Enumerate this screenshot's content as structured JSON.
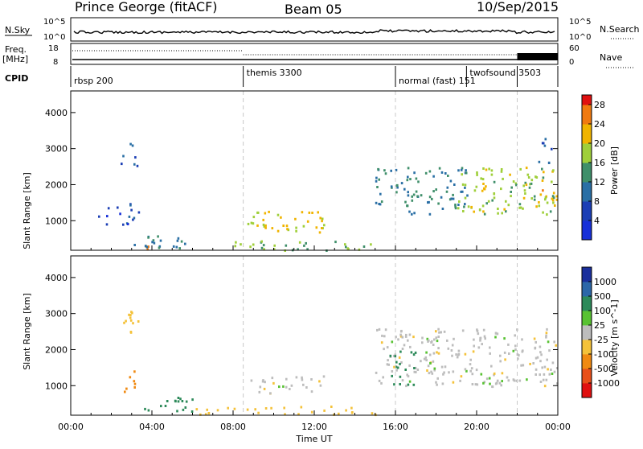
{
  "header": {
    "station": "Prince George (fitACF)",
    "beam": "Beam 05",
    "date": "10/Sep/2015"
  },
  "top_panels": {
    "nsky_label": "N.Sky",
    "nsky_ticks": [
      "10^5",
      "10^0"
    ],
    "nsearch_label": "N.Search",
    "nsearch_ticks": [
      "10^5",
      "10^0"
    ],
    "freq_label": "Freq.",
    "freq_unit": "[MHz]",
    "freq_ticks": [
      "18",
      "8"
    ],
    "nave_label": "Nave",
    "nave_ticks": [
      "60",
      "0"
    ],
    "cpid_label": "CPID",
    "cpid_segments": [
      {
        "label": "rbsp 200",
        "start_h": 0,
        "end_h": 8.5
      },
      {
        "label": "themis 3300",
        "start_h": 8.5,
        "end_h": 16.0
      },
      {
        "label": "normal (fast) 151",
        "start_h": 16.0,
        "end_h": 19.5
      },
      {
        "label": "twofsound 3503",
        "start_h": 19.5,
        "end_h": 22.0
      }
    ]
  },
  "chart_data": [
    {
      "type": "heatmap",
      "name": "power",
      "ylabel": "Slant Range [km]",
      "yticks": [
        1000,
        2000,
        3000,
        4000
      ],
      "ylim": [
        180,
        4600
      ],
      "colorbar_label": "Power [dB]",
      "colorbar_ticks": [
        4,
        8,
        12,
        16,
        20,
        24,
        28
      ],
      "colorbar_range": [
        0,
        30
      ],
      "regions": [
        {
          "t0": 1.3,
          "t1": 3.4,
          "r0": 900,
          "r1": 1500,
          "v": 6
        },
        {
          "t0": 2.4,
          "t1": 3.3,
          "r0": 2500,
          "r1": 3200,
          "v": 8
        },
        {
          "t0": 3.4,
          "t1": 4.0,
          "r0": 200,
          "r1": 500,
          "v": 26
        },
        {
          "t0": 3.0,
          "t1": 6.0,
          "r0": 200,
          "r1": 600,
          "v": 12
        },
        {
          "t0": 8.5,
          "t1": 12.5,
          "r0": 700,
          "r1": 1300,
          "v": 20
        },
        {
          "t0": 8.0,
          "t1": 15.0,
          "r0": 200,
          "r1": 500,
          "v": 16
        },
        {
          "t0": 15.0,
          "t1": 19.5,
          "r0": 1200,
          "r1": 2500,
          "v": 12
        },
        {
          "t0": 19.0,
          "t1": 24.0,
          "r0": 1200,
          "r1": 2500,
          "v": 18
        },
        {
          "t0": 22.5,
          "t1": 24.0,
          "r0": 1400,
          "r1": 1900,
          "v": 22
        },
        {
          "t0": 23.0,
          "t1": 24.0,
          "r0": 2600,
          "r1": 3300,
          "v": 8
        }
      ]
    },
    {
      "type": "heatmap",
      "name": "velocity",
      "ylabel": "Slant Range [km]",
      "yticks": [
        1000,
        2000,
        3000,
        4000
      ],
      "ylim": [
        180,
        4600
      ],
      "colorbar_label": "Velocity [m s^-1]",
      "colorbar_ticks": [
        -1000,
        -500,
        -100,
        -25,
        25,
        100,
        500,
        1000
      ],
      "colorbar_range": [
        -1200,
        1200
      ],
      "regions": [
        {
          "t0": 2.4,
          "t1": 3.3,
          "r0": 2500,
          "r1": 3200,
          "v": -70
        },
        {
          "t0": 2.6,
          "t1": 3.2,
          "r0": 800,
          "r1": 1500,
          "v": -200
        },
        {
          "t0": 3.5,
          "t1": 6.0,
          "r0": 200,
          "r1": 700,
          "v": 150
        },
        {
          "t0": 8.5,
          "t1": 12.5,
          "r0": 800,
          "r1": 1300,
          "v": 0
        },
        {
          "t0": 6.0,
          "t1": 15.0,
          "r0": 200,
          "r1": 450,
          "v": -80
        },
        {
          "t0": 15.0,
          "t1": 24.0,
          "r0": 1000,
          "r1": 2600,
          "v": 0
        },
        {
          "t0": 15.5,
          "t1": 17.0,
          "r0": 1000,
          "r1": 2000,
          "v": 400
        }
      ]
    }
  ],
  "xaxis": {
    "label": "Time UT",
    "ticks": [
      "00:00",
      "04:00",
      "08:00",
      "12:00",
      "16:00",
      "20:00",
      "00:00"
    ],
    "range_h": [
      0,
      24
    ]
  }
}
